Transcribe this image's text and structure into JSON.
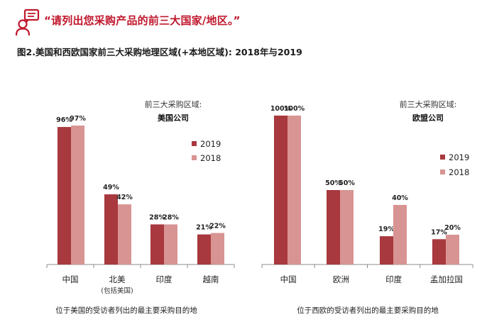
{
  "header": {
    "quote": "“请列出您采购产品的前三大国家/地区。”",
    "figure_title": "图2.美国和西欧国家前三大采购地理区域(+本地区域): 2018年与2019"
  },
  "icon": "person-speech-icon",
  "colors": {
    "s2019": "#a8393e",
    "s2018": "#d79493",
    "accent": "#c0172c"
  },
  "chart_data": [
    {
      "type": "bar",
      "annotation": [
        "前三大采购区域:",
        "美国公司"
      ],
      "categories": [
        "中国",
        "北美",
        "印度",
        "越南"
      ],
      "category_sublabels": [
        "",
        "(包括美国)",
        "",
        ""
      ],
      "series": [
        {
          "name": "2019",
          "values": [
            96,
            49,
            28,
            21
          ]
        },
        {
          "name": "2018",
          "values": [
            97,
            42,
            28,
            22
          ]
        }
      ],
      "value_labels": [
        [
          "96%",
          "49%",
          "28%",
          "21%"
        ],
        [
          "97%",
          "42%",
          "28%",
          "22%"
        ]
      ],
      "ylim": [
        0,
        100
      ],
      "xlabel": "位于美国的受访者列出的最主要采购目的地",
      "legend": "right"
    },
    {
      "type": "bar",
      "annotation": [
        "前三大采购区域:",
        "欧盟公司"
      ],
      "categories": [
        "中国",
        "欧洲",
        "印度",
        "孟加拉国"
      ],
      "category_sublabels": [
        "",
        "",
        "",
        ""
      ],
      "series": [
        {
          "name": "2019",
          "values": [
            100,
            50,
            19,
            17
          ]
        },
        {
          "name": "2018",
          "values": [
            100,
            50,
            40,
            20
          ]
        }
      ],
      "value_labels": [
        [
          "100%",
          "50%",
          "19%",
          "17%"
        ],
        [
          "100%",
          "50%",
          "40%",
          "20%"
        ]
      ],
      "ylim": [
        0,
        100
      ],
      "xlabel": "位于西欧的受访者列出的最主要采购目的地",
      "legend": "right"
    }
  ]
}
